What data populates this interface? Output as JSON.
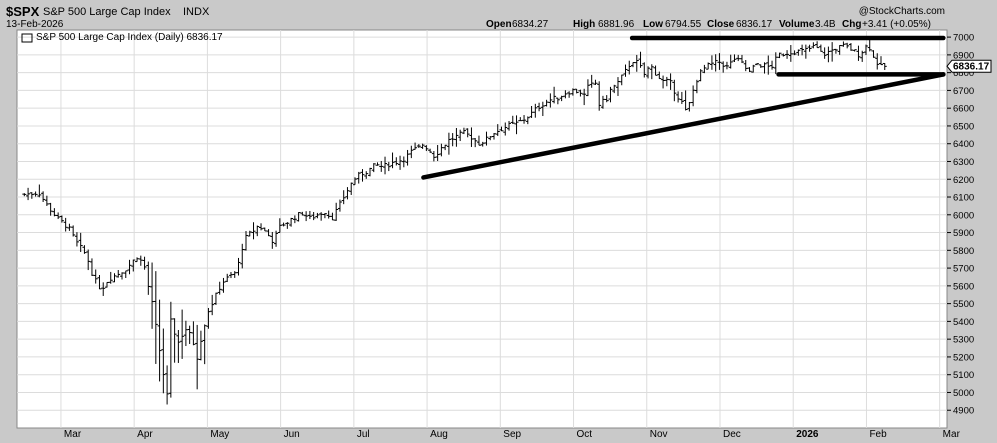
{
  "header": {
    "symbol": "$SPX",
    "name": "S&P 500 Large Cap Index",
    "exchange": "INDX",
    "date": "13-Feb-2026",
    "watermark": "@StockCharts.com",
    "open_label": "Open",
    "open_value": "6834.27",
    "high_label": "High",
    "high_value": "6881.96",
    "low_label": "Low",
    "low_value": "6794.55",
    "close_label": "Close",
    "close_value": "6836.17",
    "volume_label": "Volume",
    "volume_value": "3.4B",
    "chg_label": "Chg",
    "chg_value": "+3.41 (+0.05%)"
  },
  "legend_text": "S&P 500 Large Cap Index (Daily) 6836.17",
  "price_marker": "6836.17",
  "colors": {
    "background": "#c9c9c9",
    "panel": "#ffffff",
    "grid": "#dcdcdc",
    "bars": "#000000",
    "trendlines": "#000000"
  },
  "chart_data": {
    "type": "ohlc",
    "title": "S&P 500 Large Cap Index (Daily)",
    "ylim": [
      4800,
      7040
    ],
    "y_ticks": [
      4900,
      5000,
      5100,
      5200,
      5300,
      5400,
      5500,
      5600,
      5700,
      5800,
      5900,
      6000,
      6100,
      6200,
      6300,
      6400,
      6500,
      6600,
      6700,
      6800,
      6900,
      7000
    ],
    "x_labels": [
      "Mar",
      "Apr",
      "May",
      "Jun",
      "Jul",
      "Aug",
      "Sep",
      "Oct",
      "Nov",
      "Dec",
      "2026",
      "Feb",
      "Mar"
    ],
    "x_label_t": [
      0.05,
      0.15,
      0.25,
      0.35,
      0.45,
      0.55,
      0.65,
      0.75,
      0.85,
      0.95,
      1.05,
      1.15,
      1.25
    ],
    "grid": true,
    "series_close": [
      [
        0.0,
        6115
      ],
      [
        0.02,
        6125
      ],
      [
        0.03,
        6060
      ],
      [
        0.045,
        5980
      ],
      [
        0.06,
        5930
      ],
      [
        0.07,
        5850
      ],
      [
        0.085,
        5770
      ],
      [
        0.095,
        5640
      ],
      [
        0.105,
        5580
      ],
      [
        0.115,
        5640
      ],
      [
        0.125,
        5660
      ],
      [
        0.14,
        5700
      ],
      [
        0.155,
        5770
      ],
      [
        0.165,
        5700
      ],
      [
        0.17,
        5580
      ],
      [
        0.175,
        5490
      ],
      [
        0.19,
        5100
      ],
      [
        0.195,
        4980
      ],
      [
        0.2,
        5400
      ],
      [
        0.21,
        5280
      ],
      [
        0.22,
        5360
      ],
      [
        0.23,
        5300
      ],
      [
        0.235,
        5180
      ],
      [
        0.24,
        5280
      ],
      [
        0.25,
        5450
      ],
      [
        0.26,
        5530
      ],
      [
        0.27,
        5620
      ],
      [
        0.28,
        5650
      ],
      [
        0.29,
        5680
      ],
      [
        0.3,
        5860
      ],
      [
        0.31,
        5900
      ],
      [
        0.32,
        5940
      ],
      [
        0.33,
        5900
      ],
      [
        0.34,
        5850
      ],
      [
        0.35,
        5940
      ],
      [
        0.36,
        5960
      ],
      [
        0.37,
        5990
      ],
      [
        0.38,
        6010
      ],
      [
        0.39,
        5980
      ],
      [
        0.4,
        6000
      ],
      [
        0.41,
        6020
      ],
      [
        0.42,
        5980
      ],
      [
        0.43,
        6050
      ],
      [
        0.44,
        6130
      ],
      [
        0.45,
        6200
      ],
      [
        0.46,
        6230
      ],
      [
        0.47,
        6250
      ],
      [
        0.48,
        6280
      ],
      [
        0.49,
        6270
      ],
      [
        0.5,
        6290
      ],
      [
        0.51,
        6300
      ],
      [
        0.52,
        6320
      ],
      [
        0.53,
        6360
      ],
      [
        0.54,
        6380
      ],
      [
        0.545,
        6400
      ],
      [
        0.56,
        6330
      ],
      [
        0.57,
        6380
      ],
      [
        0.58,
        6420
      ],
      [
        0.59,
        6440
      ],
      [
        0.6,
        6460
      ],
      [
        0.61,
        6440
      ],
      [
        0.62,
        6400
      ],
      [
        0.63,
        6420
      ],
      [
        0.64,
        6460
      ],
      [
        0.65,
        6480
      ],
      [
        0.66,
        6500
      ],
      [
        0.67,
        6510
      ],
      [
        0.68,
        6530
      ],
      [
        0.69,
        6560
      ],
      [
        0.7,
        6600
      ],
      [
        0.71,
        6630
      ],
      [
        0.72,
        6650
      ],
      [
        0.73,
        6660
      ],
      [
        0.74,
        6690
      ],
      [
        0.75,
        6700
      ],
      [
        0.76,
        6690
      ],
      [
        0.765,
        6670
      ],
      [
        0.77,
        6720
      ],
      [
        0.78,
        6740
      ],
      [
        0.785,
        6620
      ],
      [
        0.795,
        6650
      ],
      [
        0.8,
        6700
      ],
      [
        0.81,
        6740
      ],
      [
        0.82,
        6800
      ],
      [
        0.83,
        6870
      ],
      [
        0.84,
        6850
      ],
      [
        0.845,
        6780
      ],
      [
        0.855,
        6840
      ],
      [
        0.865,
        6780
      ],
      [
        0.875,
        6740
      ],
      [
        0.88,
        6760
      ],
      [
        0.89,
        6680
      ],
      [
        0.9,
        6620
      ],
      [
        0.905,
        6560
      ],
      [
        0.91,
        6660
      ],
      [
        0.92,
        6780
      ],
      [
        0.93,
        6830
      ],
      [
        0.94,
        6850
      ],
      [
        0.95,
        6860
      ],
      [
        0.96,
        6830
      ],
      [
        0.97,
        6880
      ],
      [
        0.98,
        6850
      ],
      [
        0.99,
        6800
      ],
      [
        1.0,
        6850
      ],
      [
        1.01,
        6840
      ],
      [
        1.02,
        6830
      ],
      [
        1.03,
        6900
      ],
      [
        1.04,
        6910
      ],
      [
        1.05,
        6920
      ],
      [
        1.06,
        6920
      ],
      [
        1.07,
        6930
      ],
      [
        1.08,
        6950
      ],
      [
        1.09,
        6900
      ],
      [
        1.1,
        6920
      ],
      [
        1.11,
        6940
      ],
      [
        1.12,
        6950
      ],
      [
        1.13,
        6930
      ],
      [
        1.14,
        6900
      ],
      [
        1.15,
        6950
      ],
      [
        1.155,
        6940
      ],
      [
        1.16,
        6880
      ],
      [
        1.17,
        6830
      ],
      [
        1.175,
        6836
      ]
    ],
    "trendlines": [
      {
        "name": "upper flat resistance",
        "points": [
          [
            0.83,
            6995
          ],
          [
            1.255,
            6995
          ]
        ]
      },
      {
        "name": "lower flat support",
        "points": [
          [
            1.03,
            6790
          ],
          [
            1.255,
            6790
          ]
        ]
      },
      {
        "name": "rising support",
        "points": [
          [
            0.545,
            6210
          ],
          [
            1.255,
            6790
          ]
        ]
      }
    ]
  }
}
